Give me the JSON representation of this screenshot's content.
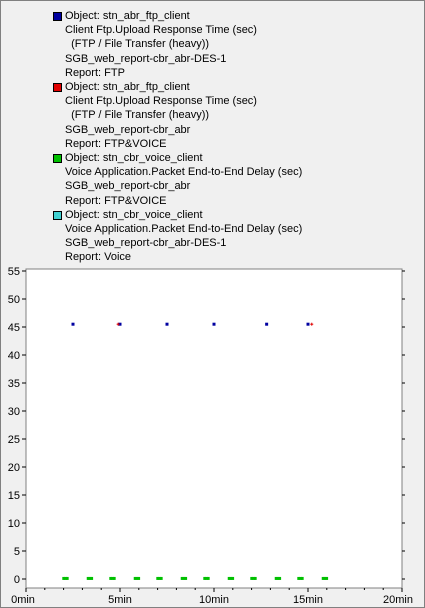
{
  "chart_data": {
    "type": "scatter",
    "title": "",
    "xlabel": "",
    "ylabel": "",
    "xlim": [
      0,
      20
    ],
    "ylim": [
      0,
      55
    ],
    "x_unit": "min",
    "x_ticks": [
      "0min",
      "5min",
      "10min",
      "15min",
      "20min"
    ],
    "x_tick_values": [
      0,
      5,
      10,
      15,
      20
    ],
    "y_ticks": [
      "0",
      "5",
      "10",
      "15",
      "20",
      "25",
      "30",
      "35",
      "40",
      "45",
      "50",
      "55"
    ],
    "y_tick_values": [
      0,
      5,
      10,
      15,
      20,
      25,
      30,
      35,
      40,
      45,
      50,
      55
    ],
    "grid": false,
    "legend_position": "top",
    "series": [
      {
        "name": "Object: stn_abr_ftp_client",
        "legend_lines": [
          "Object: stn_abr_ftp_client",
          "Client Ftp.Upload Response Time (sec)",
          "  (FTP / File Transfer (heavy))",
          "SGB_web_report-cbr_abr-DES-1",
          "Report: FTP"
        ],
        "color": "#0000a0",
        "marker": "square",
        "x": [
          2.5,
          5.0,
          7.5,
          10.0,
          12.8,
          15.0
        ],
        "y": [
          45.5,
          45.5,
          45.5,
          45.5,
          45.5,
          45.5
        ]
      },
      {
        "name": "Object: stn_abr_ftp_client",
        "legend_lines": [
          "Object: stn_abr_ftp_client",
          "Client Ftp.Upload Response Time (sec)",
          "  (FTP / File Transfer (heavy))",
          "SGB_web_report-cbr_abr",
          "Report: FTP&VOICE"
        ],
        "color": "#e00000",
        "marker": "plus",
        "x": [
          4.9,
          15.2
        ],
        "y": [
          45.5,
          45.5
        ]
      },
      {
        "name": "Object: stn_cbr_voice_client",
        "legend_lines": [
          "Object: stn_cbr_voice_client",
          "Voice Application.Packet End-to-End Delay (sec)",
          "SGB_web_report-cbr_abr",
          "Report: FTP&VOICE"
        ],
        "color": "#00c000",
        "marker": "dash",
        "x": [
          2.0,
          2.1,
          2.2,
          3.3,
          3.4,
          3.5,
          4.5,
          4.6,
          4.7,
          5.8,
          5.9,
          6.0,
          7.0,
          7.1,
          7.2,
          8.3,
          8.4,
          8.5,
          9.5,
          9.6,
          9.7,
          10.8,
          10.9,
          11.0,
          12.0,
          12.1,
          12.2,
          13.3,
          13.4,
          13.5,
          14.5,
          14.6,
          14.7,
          15.8,
          15.9,
          16.0
        ],
        "y": [
          0.1,
          0.1,
          0.1,
          0.1,
          0.1,
          0.1,
          0.1,
          0.1,
          0.1,
          0.1,
          0.1,
          0.1,
          0.1,
          0.1,
          0.1,
          0.1,
          0.1,
          0.1,
          0.1,
          0.1,
          0.1,
          0.1,
          0.1,
          0.1,
          0.1,
          0.1,
          0.1,
          0.1,
          0.1,
          0.1,
          0.1,
          0.1,
          0.1,
          0.1,
          0.1,
          0.1
        ]
      },
      {
        "name": "Object: stn_cbr_voice_client",
        "legend_lines": [
          "Object: stn_cbr_voice_client",
          "Voice Application.Packet End-to-End Delay (sec)",
          "SGB_web_report-cbr_abr-DES-1",
          "Report: Voice"
        ],
        "color": "#40d0d0",
        "marker": "dash",
        "x": [],
        "y": []
      }
    ]
  }
}
